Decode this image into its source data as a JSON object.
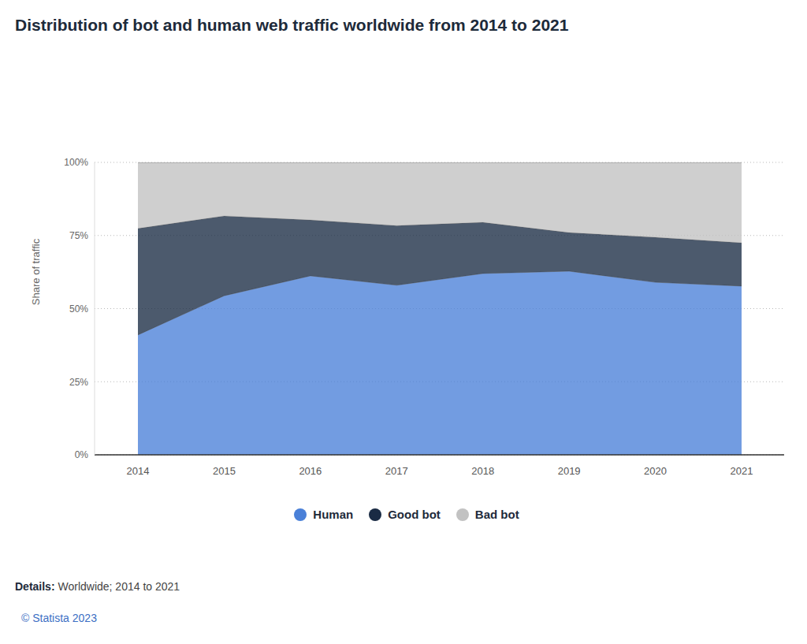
{
  "chart_data": {
    "type": "area",
    "title": "Distribution of bot and human web traffic worldwide from 2014 to 2021",
    "y_label": "Share of traffic",
    "details_label": "Details:",
    "details": "Worldwide; 2014 to 2021",
    "source": "© Statista 2023",
    "categories": [
      "2014",
      "2015",
      "2016",
      "2017",
      "2018",
      "2019",
      "2020",
      "2021"
    ],
    "series": [
      {
        "name": "Human",
        "color": "#4a80d8",
        "values": [
          41,
          54.4,
          61.2,
          58,
          62,
          62.8,
          59,
          57.7
        ]
      },
      {
        "name": "Good bot",
        "color": "#1a2b44",
        "values": [
          36.4,
          27.3,
          19.1,
          20.4,
          17.5,
          13.2,
          15.4,
          14.8
        ]
      },
      {
        "name": "Bad bot",
        "color": "#c2c2c2",
        "values": [
          22.6,
          18.3,
          19.7,
          21.6,
          20.5,
          24,
          25.6,
          27.5
        ]
      }
    ],
    "ylim": [
      0,
      100
    ],
    "yticks": [
      {
        "value": 0,
        "label": "0%"
      },
      {
        "value": 25,
        "label": "25%"
      },
      {
        "value": 50,
        "label": "50%"
      },
      {
        "value": 75,
        "label": "75%"
      },
      {
        "value": 100,
        "label": "100%"
      }
    ],
    "stacked": true,
    "grid": true,
    "legend": "bottom"
  }
}
